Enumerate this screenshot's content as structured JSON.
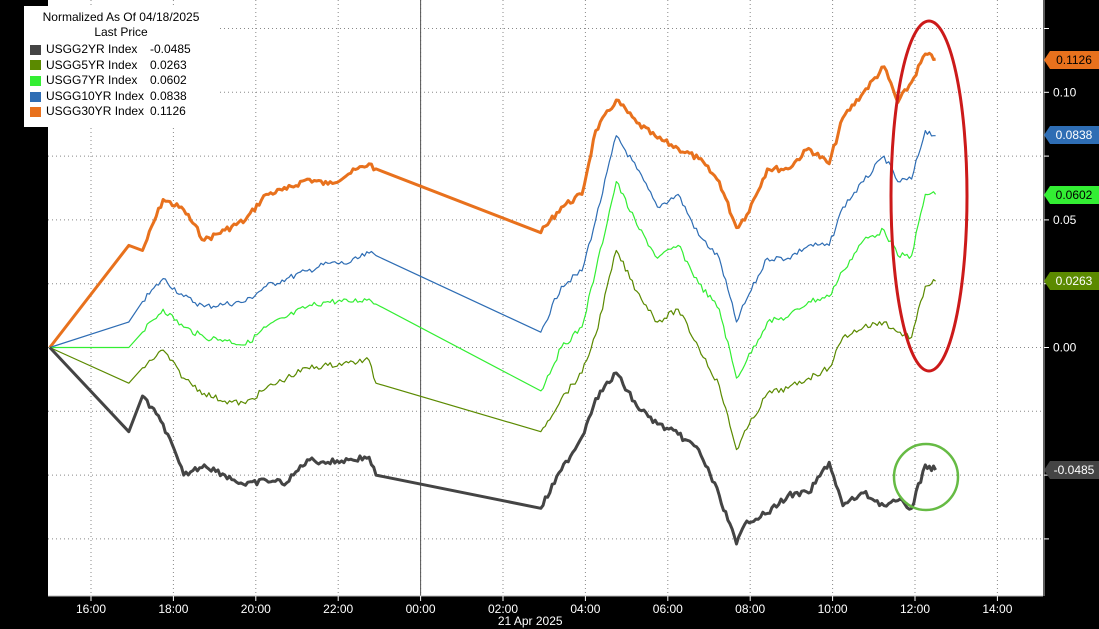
{
  "legend": {
    "title": "Normalized As Of 04/18/2025",
    "subtitle": "Last Price",
    "items": [
      {
        "name": "USGG2YR Index",
        "value": "-0.0485",
        "color": "#444444"
      },
      {
        "name": "USGG5YR Index",
        "value": "0.0263",
        "color": "#5b8a00"
      },
      {
        "name": "USGG7YR Index",
        "value": "0.0602",
        "color": "#33ee33"
      },
      {
        "name": "USGG10YR Index",
        "value": "0.0838",
        "color": "#2e6db4"
      },
      {
        "name": "USGG30YR Index",
        "value": "0.1126",
        "color": "#e8711d"
      }
    ]
  },
  "colors": {
    "background": "#000000",
    "plot_background": "#ffffff",
    "grid": "#888888",
    "highlight_red": "#cc1a1a",
    "highlight_green": "#66bb44"
  },
  "chart_data": {
    "type": "line",
    "title": "Normalized As Of 04/18/2025",
    "subtitle": "Last Price",
    "xlabel": "21 Apr 2025",
    "x_ticks": [
      "16:00",
      "18:00",
      "20:00",
      "22:00",
      "00:00",
      "02:00",
      "04:00",
      "06:00",
      "08:00",
      "10:00",
      "12:00",
      "14:00"
    ],
    "y_ticks": [
      "0.10",
      "0.05",
      "0.00"
    ],
    "ylim": [
      -0.095,
      0.135
    ],
    "grid": true,
    "legend_position": "top-left",
    "session_break": "00:00",
    "series": [
      {
        "name": "USGG30YR Index",
        "last": "0.1126",
        "color": "#e8711d",
        "points": [
          [
            "15:00",
            0.0
          ],
          [
            "16:55",
            0.04
          ],
          [
            "17:15",
            0.038
          ],
          [
            "17:45",
            0.058
          ],
          [
            "18:15",
            0.054
          ],
          [
            "18:45",
            0.042
          ],
          [
            "19:15",
            0.046
          ],
          [
            "19:45",
            0.05
          ],
          [
            "20:15",
            0.06
          ],
          [
            "20:45",
            0.062
          ],
          [
            "21:15",
            0.066
          ],
          [
            "21:45",
            0.064
          ],
          [
            "22:15",
            0.068
          ],
          [
            "22:45",
            0.072
          ],
          [
            "22:55",
            0.07
          ],
          [
            "02:55",
            0.045
          ],
          [
            "03:25",
            0.055
          ],
          [
            "03:55",
            0.06
          ],
          [
            "04:15",
            0.085
          ],
          [
            "04:45",
            0.097
          ],
          [
            "05:15",
            0.088
          ],
          [
            "05:45",
            0.082
          ],
          [
            "06:15",
            0.078
          ],
          [
            "06:45",
            0.074
          ],
          [
            "07:15",
            0.065
          ],
          [
            "07:40",
            0.047
          ],
          [
            "07:55",
            0.052
          ],
          [
            "08:25",
            0.07
          ],
          [
            "08:55",
            0.07
          ],
          [
            "09:25",
            0.078
          ],
          [
            "09:55",
            0.072
          ],
          [
            "10:15",
            0.09
          ],
          [
            "10:45",
            0.1
          ],
          [
            "11:15",
            0.11
          ],
          [
            "11:35",
            0.096
          ],
          [
            "11:55",
            0.104
          ],
          [
            "12:15",
            0.115
          ],
          [
            "12:30",
            0.113
          ]
        ]
      },
      {
        "name": "USGG10YR Index",
        "last": "0.0838",
        "color": "#2e6db4",
        "points": [
          [
            "15:00",
            0.0
          ],
          [
            "16:55",
            0.01
          ],
          [
            "17:15",
            0.018
          ],
          [
            "17:45",
            0.027
          ],
          [
            "18:15",
            0.02
          ],
          [
            "18:45",
            0.016
          ],
          [
            "19:15",
            0.017
          ],
          [
            "19:45",
            0.018
          ],
          [
            "20:15",
            0.024
          ],
          [
            "20:45",
            0.027
          ],
          [
            "21:15",
            0.03
          ],
          [
            "21:45",
            0.033
          ],
          [
            "22:15",
            0.033
          ],
          [
            "22:45",
            0.037
          ],
          [
            "22:55",
            0.036
          ],
          [
            "02:55",
            0.006
          ],
          [
            "03:25",
            0.024
          ],
          [
            "03:55",
            0.03
          ],
          [
            "04:15",
            0.05
          ],
          [
            "04:45",
            0.083
          ],
          [
            "05:15",
            0.07
          ],
          [
            "05:45",
            0.055
          ],
          [
            "06:15",
            0.06
          ],
          [
            "06:45",
            0.044
          ],
          [
            "07:15",
            0.035
          ],
          [
            "07:40",
            0.01
          ],
          [
            "07:55",
            0.019
          ],
          [
            "08:25",
            0.035
          ],
          [
            "08:55",
            0.035
          ],
          [
            "09:25",
            0.04
          ],
          [
            "09:55",
            0.04
          ],
          [
            "10:15",
            0.055
          ],
          [
            "10:45",
            0.065
          ],
          [
            "11:15",
            0.075
          ],
          [
            "11:35",
            0.065
          ],
          [
            "11:55",
            0.066
          ],
          [
            "12:15",
            0.085
          ],
          [
            "12:30",
            0.083
          ]
        ]
      },
      {
        "name": "USGG7YR Index",
        "last": "0.0602",
        "color": "#33ee33",
        "points": [
          [
            "15:00",
            0.0
          ],
          [
            "16:55",
            0.0
          ],
          [
            "17:15",
            0.006
          ],
          [
            "17:45",
            0.015
          ],
          [
            "18:15",
            0.008
          ],
          [
            "18:45",
            0.004
          ],
          [
            "19:15",
            0.003
          ],
          [
            "19:45",
            0.001
          ],
          [
            "20:15",
            0.008
          ],
          [
            "20:45",
            0.012
          ],
          [
            "21:15",
            0.016
          ],
          [
            "21:45",
            0.018
          ],
          [
            "22:15",
            0.018
          ],
          [
            "22:45",
            0.019
          ],
          [
            "22:55",
            0.017
          ],
          [
            "02:55",
            -0.017
          ],
          [
            "03:25",
            0.0
          ],
          [
            "03:55",
            0.008
          ],
          [
            "04:15",
            0.03
          ],
          [
            "04:45",
            0.065
          ],
          [
            "05:15",
            0.048
          ],
          [
            "05:45",
            0.035
          ],
          [
            "06:15",
            0.04
          ],
          [
            "06:45",
            0.025
          ],
          [
            "07:15",
            0.015
          ],
          [
            "07:40",
            -0.012
          ],
          [
            "07:55",
            -0.005
          ],
          [
            "08:25",
            0.01
          ],
          [
            "08:55",
            0.012
          ],
          [
            "09:25",
            0.018
          ],
          [
            "09:55",
            0.02
          ],
          [
            "10:15",
            0.03
          ],
          [
            "10:45",
            0.042
          ],
          [
            "11:15",
            0.046
          ],
          [
            "11:35",
            0.036
          ],
          [
            "11:55",
            0.036
          ],
          [
            "12:15",
            0.06
          ],
          [
            "12:30",
            0.06
          ]
        ]
      },
      {
        "name": "USGG5YR Index",
        "last": "0.0263",
        "color": "#5b8a00",
        "points": [
          [
            "15:00",
            0.0
          ],
          [
            "16:55",
            -0.014
          ],
          [
            "17:15",
            -0.008
          ],
          [
            "17:45",
            -0.001
          ],
          [
            "18:15",
            -0.012
          ],
          [
            "18:45",
            -0.018
          ],
          [
            "19:15",
            -0.021
          ],
          [
            "19:45",
            -0.022
          ],
          [
            "20:15",
            -0.016
          ],
          [
            "20:45",
            -0.012
          ],
          [
            "21:15",
            -0.008
          ],
          [
            "21:45",
            -0.007
          ],
          [
            "22:15",
            -0.006
          ],
          [
            "22:45",
            -0.005
          ],
          [
            "22:55",
            -0.014
          ],
          [
            "02:55",
            -0.033
          ],
          [
            "03:25",
            -0.02
          ],
          [
            "03:55",
            -0.01
          ],
          [
            "04:15",
            0.005
          ],
          [
            "04:45",
            0.038
          ],
          [
            "05:15",
            0.022
          ],
          [
            "05:45",
            0.01
          ],
          [
            "06:15",
            0.015
          ],
          [
            "06:45",
            0.0
          ],
          [
            "07:15",
            -0.015
          ],
          [
            "07:40",
            -0.04
          ],
          [
            "07:55",
            -0.032
          ],
          [
            "08:25",
            -0.018
          ],
          [
            "08:55",
            -0.016
          ],
          [
            "09:25",
            -0.012
          ],
          [
            "09:55",
            -0.008
          ],
          [
            "10:15",
            0.004
          ],
          [
            "10:45",
            0.008
          ],
          [
            "11:15",
            0.01
          ],
          [
            "11:35",
            0.006
          ],
          [
            "11:55",
            0.004
          ],
          [
            "12:15",
            0.024
          ],
          [
            "12:30",
            0.026
          ]
        ]
      },
      {
        "name": "USGG2YR Index",
        "last": "-0.0485",
        "color": "#444444",
        "points": [
          [
            "15:00",
            0.0
          ],
          [
            "16:55",
            -0.033
          ],
          [
            "17:15",
            -0.019
          ],
          [
            "17:45",
            -0.03
          ],
          [
            "18:15",
            -0.05
          ],
          [
            "18:45",
            -0.046
          ],
          [
            "19:15",
            -0.05
          ],
          [
            "19:45",
            -0.054
          ],
          [
            "20:15",
            -0.052
          ],
          [
            "20:45",
            -0.053
          ],
          [
            "21:15",
            -0.044
          ],
          [
            "21:45",
            -0.045
          ],
          [
            "22:15",
            -0.044
          ],
          [
            "22:45",
            -0.043
          ],
          [
            "22:55",
            -0.05
          ],
          [
            "02:55",
            -0.063
          ],
          [
            "03:25",
            -0.048
          ],
          [
            "03:55",
            -0.035
          ],
          [
            "04:15",
            -0.02
          ],
          [
            "04:45",
            -0.01
          ],
          [
            "05:15",
            -0.023
          ],
          [
            "05:45",
            -0.03
          ],
          [
            "06:15",
            -0.034
          ],
          [
            "06:45",
            -0.04
          ],
          [
            "07:15",
            -0.058
          ],
          [
            "07:40",
            -0.077
          ],
          [
            "07:55",
            -0.068
          ],
          [
            "08:25",
            -0.065
          ],
          [
            "08:55",
            -0.058
          ],
          [
            "09:25",
            -0.057
          ],
          [
            "09:55",
            -0.045
          ],
          [
            "10:15",
            -0.062
          ],
          [
            "10:45",
            -0.057
          ],
          [
            "11:15",
            -0.062
          ],
          [
            "11:35",
            -0.06
          ],
          [
            "11:55",
            -0.063
          ],
          [
            "12:15",
            -0.046
          ],
          [
            "12:30",
            -0.048
          ]
        ]
      }
    ]
  }
}
